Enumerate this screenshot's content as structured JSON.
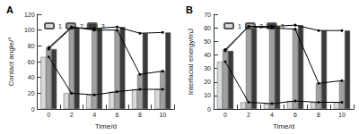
{
  "chart_data": [
    {
      "type": "bar",
      "title": "A",
      "x_label": "Time/d",
      "y_label": "Contact angle/°",
      "categories": [
        "0",
        "2",
        "4",
        "6",
        "8",
        "10"
      ],
      "series": [
        {
          "name": "1",
          "color": "#d9d9d9",
          "line_style": "solid",
          "marker": "circle",
          "values": [
            66,
            20,
            18,
            22,
            25,
            25
          ]
        },
        {
          "name": "2",
          "color": "#a0a0a0",
          "line_style": "solid",
          "marker": "circle",
          "values": [
            78,
            104,
            100,
            100,
            44,
            48
          ]
        },
        {
          "name": "3",
          "color": "#3a3a3a",
          "line_style": "solid",
          "marker": "circle",
          "values": [
            76,
            103,
            102,
            104,
            96,
            97
          ]
        }
      ],
      "ylim": [
        0,
        120
      ],
      "yticks": [
        0,
        20,
        40,
        60,
        80,
        100,
        120
      ],
      "legend": "upper left"
    },
    {
      "type": "bar",
      "title": "B",
      "x_label": "Time/d",
      "y_label": "Interfacial energy/mJ",
      "categories": [
        "0",
        "2",
        "4",
        "6",
        "8",
        "10"
      ],
      "series": [
        {
          "name": "1",
          "color": "#d9d9d9",
          "line_style": "solid",
          "marker": "circle",
          "values": [
            35,
            5,
            4,
            6,
            5,
            5
          ]
        },
        {
          "name": "2",
          "color": "#a0a0a0",
          "line_style": "solid",
          "marker": "circle",
          "values": [
            44,
            61,
            60,
            59,
            19,
            21
          ]
        },
        {
          "name": "3",
          "color": "#3a3a3a",
          "line_style": "solid",
          "marker": "circle",
          "values": [
            43,
            61,
            61,
            62,
            58,
            58
          ]
        }
      ],
      "ylim": [
        0,
        70
      ],
      "yticks": [
        0,
        10,
        20,
        30,
        40,
        50,
        60,
        70
      ],
      "legend": "upper left"
    }
  ]
}
